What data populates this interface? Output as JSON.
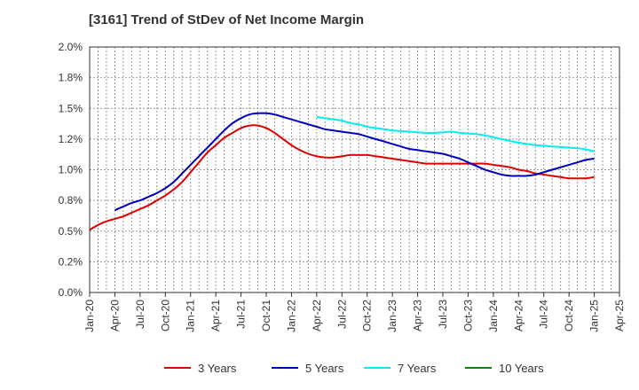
{
  "chart_data": {
    "type": "line",
    "title": "[3161]  Trend of StDev of Net Income Margin",
    "xlabel": "",
    "ylabel": "",
    "x_ticks": [
      "Jan-20",
      "Apr-20",
      "Jul-20",
      "Oct-20",
      "Jan-21",
      "Apr-21",
      "Jul-21",
      "Oct-21",
      "Jan-22",
      "Apr-22",
      "Jul-22",
      "Oct-22",
      "Jan-23",
      "Apr-23",
      "Jul-23",
      "Oct-23",
      "Jan-24",
      "Apr-24",
      "Jul-24",
      "Oct-24",
      "Jan-25",
      "Apr-25"
    ],
    "y_ticks": [
      "0.0%",
      "0.2%",
      "0.5%",
      "0.8%",
      "1.0%",
      "1.2%",
      "1.5%",
      "1.8%",
      "2.0%"
    ],
    "ylim": [
      0,
      2.0
    ],
    "grid": true,
    "legend_position": "bottom",
    "series": [
      {
        "name": "3 Years",
        "color": "#dd0000",
        "x": [
          "2020-01",
          "2020-02",
          "2020-03",
          "2020-04",
          "2020-05",
          "2020-06",
          "2020-07",
          "2020-08",
          "2020-09",
          "2020-10",
          "2020-11",
          "2020-12",
          "2021-01",
          "2021-02",
          "2021-03",
          "2021-04",
          "2021-05",
          "2021-06",
          "2021-07",
          "2021-08",
          "2021-09",
          "2021-10",
          "2021-11",
          "2021-12",
          "2022-01",
          "2022-02",
          "2022-03",
          "2022-04",
          "2022-05",
          "2022-06",
          "2022-07",
          "2022-08",
          "2022-09",
          "2022-10",
          "2022-11",
          "2022-12",
          "2023-01",
          "2023-02",
          "2023-03",
          "2023-04",
          "2023-05",
          "2023-06",
          "2023-07",
          "2023-08",
          "2023-09",
          "2023-10",
          "2023-11",
          "2023-12",
          "2024-01",
          "2024-02",
          "2024-03",
          "2024-04",
          "2024-05",
          "2024-06",
          "2024-07",
          "2024-08",
          "2024-09",
          "2024-10",
          "2024-11",
          "2024-12",
          "2025-01"
        ],
        "values": [
          0.51,
          0.55,
          0.58,
          0.6,
          0.62,
          0.65,
          0.68,
          0.71,
          0.75,
          0.79,
          0.84,
          0.9,
          0.98,
          1.06,
          1.14,
          1.2,
          1.26,
          1.3,
          1.34,
          1.36,
          1.36,
          1.34,
          1.3,
          1.25,
          1.2,
          1.16,
          1.13,
          1.11,
          1.1,
          1.1,
          1.11,
          1.12,
          1.12,
          1.12,
          1.11,
          1.1,
          1.09,
          1.08,
          1.07,
          1.06,
          1.05,
          1.05,
          1.05,
          1.05,
          1.05,
          1.05,
          1.05,
          1.05,
          1.04,
          1.03,
          1.02,
          1.0,
          0.99,
          0.97,
          0.96,
          0.95,
          0.94,
          0.93,
          0.93,
          0.93,
          0.94
        ]
      },
      {
        "name": "5 Years",
        "color": "#0000bb",
        "x": [
          "2020-04",
          "2020-05",
          "2020-06",
          "2020-07",
          "2020-08",
          "2020-09",
          "2020-10",
          "2020-11",
          "2020-12",
          "2021-01",
          "2021-02",
          "2021-03",
          "2021-04",
          "2021-05",
          "2021-06",
          "2021-07",
          "2021-08",
          "2021-09",
          "2021-10",
          "2021-11",
          "2021-12",
          "2022-01",
          "2022-02",
          "2022-03",
          "2022-04",
          "2022-05",
          "2022-06",
          "2022-07",
          "2022-08",
          "2022-09",
          "2022-10",
          "2022-11",
          "2022-12",
          "2023-01",
          "2023-02",
          "2023-03",
          "2023-04",
          "2023-05",
          "2023-06",
          "2023-07",
          "2023-08",
          "2023-09",
          "2023-10",
          "2023-11",
          "2023-12",
          "2024-01",
          "2024-02",
          "2024-03",
          "2024-04",
          "2024-05",
          "2024-06",
          "2024-07",
          "2024-08",
          "2024-09",
          "2024-10",
          "2024-11",
          "2024-12",
          "2025-01"
        ],
        "values": [
          0.67,
          0.7,
          0.73,
          0.75,
          0.78,
          0.81,
          0.85,
          0.9,
          0.97,
          1.04,
          1.11,
          1.18,
          1.25,
          1.32,
          1.38,
          1.42,
          1.45,
          1.46,
          1.46,
          1.45,
          1.43,
          1.41,
          1.39,
          1.37,
          1.35,
          1.33,
          1.32,
          1.31,
          1.3,
          1.29,
          1.27,
          1.25,
          1.23,
          1.21,
          1.19,
          1.17,
          1.16,
          1.15,
          1.14,
          1.13,
          1.11,
          1.09,
          1.06,
          1.03,
          1.0,
          0.98,
          0.96,
          0.95,
          0.95,
          0.95,
          0.96,
          0.98,
          1.0,
          1.02,
          1.04,
          1.06,
          1.08,
          1.09
        ]
      },
      {
        "name": "7 Years",
        "color": "#00eeee",
        "x": [
          "2022-04",
          "2022-05",
          "2022-06",
          "2022-07",
          "2022-08",
          "2022-09",
          "2022-10",
          "2022-11",
          "2022-12",
          "2023-01",
          "2023-02",
          "2023-03",
          "2023-04",
          "2023-05",
          "2023-06",
          "2023-07",
          "2023-08",
          "2023-09",
          "2023-10",
          "2023-11",
          "2023-12",
          "2024-01",
          "2024-02",
          "2024-03",
          "2024-04",
          "2024-05",
          "2024-06",
          "2024-07",
          "2024-08",
          "2024-09",
          "2024-10",
          "2024-11",
          "2024-12",
          "2025-01"
        ],
        "values": [
          1.43,
          1.42,
          1.41,
          1.4,
          1.38,
          1.37,
          1.35,
          1.34,
          1.33,
          1.32,
          1.315,
          1.31,
          1.305,
          1.3,
          1.3,
          1.305,
          1.31,
          1.3,
          1.295,
          1.29,
          1.28,
          1.265,
          1.25,
          1.235,
          1.22,
          1.21,
          1.2,
          1.195,
          1.19,
          1.185,
          1.18,
          1.175,
          1.165,
          1.15
        ]
      },
      {
        "name": "10 Years",
        "color": "#008800",
        "x": [],
        "values": []
      }
    ]
  }
}
